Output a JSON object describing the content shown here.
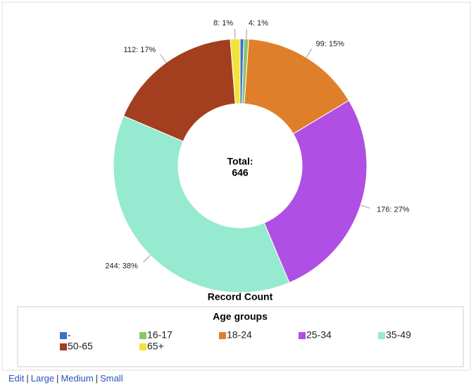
{
  "chart_data": {
    "type": "donut",
    "center_label": "Total:",
    "total": 646,
    "caption": "Record Count",
    "legend_title": "Age groups",
    "categories": [
      "-",
      "16-17",
      "18-24",
      "25-34",
      "35-49",
      "50-65",
      "65+"
    ],
    "values": [
      3,
      4,
      99,
      176,
      244,
      112,
      8
    ],
    "value_labels": [
      null,
      "4: 1%",
      "99: 15%",
      "176: 27%",
      "244: 38%",
      "112: 17%",
      "8: 1%"
    ],
    "colors": [
      "#3d6fcc",
      "#8cc66a",
      "#e07f2a",
      "#b04fe3",
      "#96ead0",
      "#a33e1f",
      "#f2e33c"
    ]
  },
  "links": [
    "Edit",
    "Large",
    "Medium",
    "Small"
  ],
  "link_separator": "|"
}
